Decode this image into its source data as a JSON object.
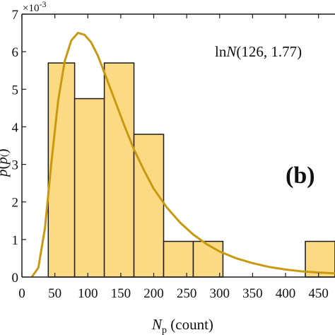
{
  "chart_data": {
    "type": "bar",
    "xlabel": "N_p (count)",
    "xlabel_main": "N",
    "xlabel_sub": "p",
    "xlabel_rest": " (count)",
    "ylabel_visible": "P(N_p)",
    "ylabel_parts": [
      "p",
      "(",
      "p",
      "(",
      ")"
    ],
    "y_exponent": "×10",
    "y_exponent_power": "-3",
    "xlim": [
      0,
      475
    ],
    "ylim": [
      0,
      7
    ],
    "xticks": [
      0,
      50,
      100,
      150,
      200,
      250,
      300,
      350,
      400,
      450
    ],
    "yticks": [
      0,
      1,
      2,
      3,
      4,
      5,
      6,
      7
    ],
    "grid": false,
    "bins": [
      {
        "x0": 40,
        "x1": 80,
        "value": 5.7
      },
      {
        "x0": 80,
        "x1": 125,
        "value": 4.75
      },
      {
        "x0": 125,
        "x1": 170,
        "value": 5.7
      },
      {
        "x0": 170,
        "x1": 215,
        "value": 3.8
      },
      {
        "x0": 215,
        "x1": 260,
        "value": 0.95
      },
      {
        "x0": 260,
        "x1": 305,
        "value": 0.95
      },
      {
        "x0": 430,
        "x1": 475,
        "value": 0.95
      }
    ],
    "fit_curve": {
      "label": "lnN(126, 1.77)",
      "label_italic": "N",
      "label_pre": "ln",
      "label_post": "(126, 1.77)",
      "x": [
        15,
        25,
        35,
        45,
        55,
        65,
        75,
        85,
        95,
        105,
        115,
        125,
        140,
        155,
        170,
        185,
        200,
        220,
        240,
        260,
        280,
        300,
        325,
        350,
        375,
        400,
        425,
        450,
        475
      ],
      "y": [
        0.0,
        0.25,
        1.3,
        3.1,
        4.7,
        5.75,
        6.3,
        6.5,
        6.45,
        6.25,
        5.9,
        5.45,
        4.75,
        4.05,
        3.4,
        2.85,
        2.35,
        1.85,
        1.45,
        1.13,
        0.88,
        0.68,
        0.5,
        0.37,
        0.27,
        0.2,
        0.15,
        0.12,
        0.1
      ]
    },
    "panel_label": "(b)",
    "colors": {
      "bar_fill": "#fcd983",
      "bar_stroke": "#1a1a1a",
      "curve": "#c99a10",
      "axis": "#1a1a1a"
    }
  }
}
